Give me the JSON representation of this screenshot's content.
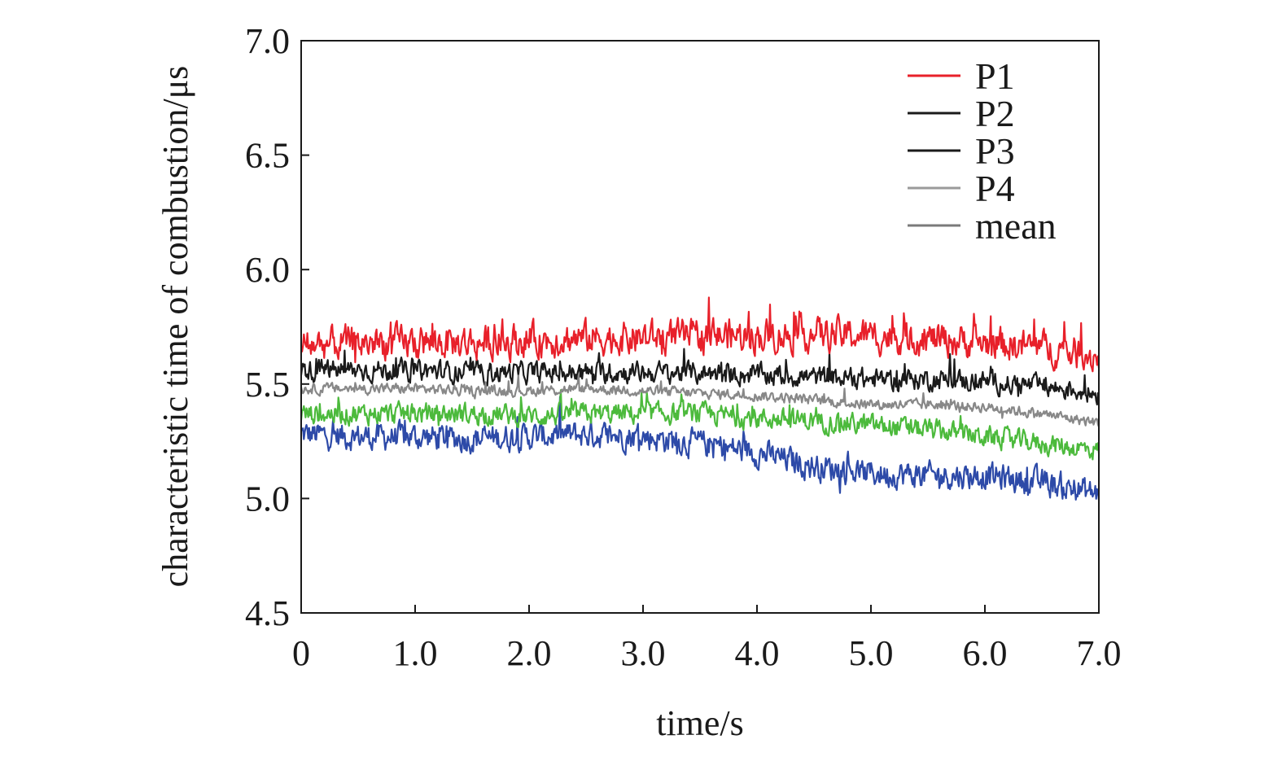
{
  "chart_data": {
    "type": "line",
    "title": "",
    "xlabel": "time/s",
    "ylabel": "characteristic time of combustion/μs",
    "xlim": [
      0,
      7.0
    ],
    "ylim": [
      4.5,
      7.0
    ],
    "x_ticks": [
      "0",
      "1.0",
      "2.0",
      "3.0",
      "4.0",
      "5.0",
      "6.0",
      "7.0"
    ],
    "y_ticks": [
      "4.5",
      "5.0",
      "5.5",
      "6.0",
      "6.5",
      "7.0"
    ],
    "grid": false,
    "legend_position": "top-right",
    "x": [
      0,
      0.5,
      1.0,
      1.5,
      2.0,
      2.5,
      3.0,
      3.5,
      4.0,
      4.5,
      5.0,
      5.5,
      6.0,
      6.5,
      7.0
    ],
    "series": [
      {
        "name": "P1",
        "color": "#e8202a",
        "legend_color": "#e8202a",
        "values": [
          5.67,
          5.68,
          5.68,
          5.68,
          5.69,
          5.7,
          5.7,
          5.71,
          5.71,
          5.72,
          5.71,
          5.7,
          5.68,
          5.66,
          5.62
        ]
      },
      {
        "name": "P2",
        "color": "#1a1a1a",
        "legend_color": "#1a1a1a",
        "values": [
          5.56,
          5.56,
          5.56,
          5.55,
          5.55,
          5.55,
          5.55,
          5.55,
          5.54,
          5.53,
          5.52,
          5.52,
          5.51,
          5.49,
          5.46
        ]
      },
      {
        "name": "P3",
        "color": "#2d4aa8",
        "legend_color": "#1a1a1a",
        "values": [
          5.28,
          5.27,
          5.27,
          5.26,
          5.27,
          5.28,
          5.27,
          5.24,
          5.2,
          5.14,
          5.11,
          5.1,
          5.1,
          5.07,
          5.02
        ]
      },
      {
        "name": "P4",
        "color": "#4cba3c",
        "legend_color": "#9a9a9a",
        "values": [
          5.37,
          5.37,
          5.37,
          5.37,
          5.36,
          5.37,
          5.37,
          5.37,
          5.35,
          5.34,
          5.32,
          5.3,
          5.27,
          5.24,
          5.21
        ]
      },
      {
        "name": "mean",
        "color": "#888888",
        "legend_color": "#7a7a7a",
        "values": [
          5.48,
          5.48,
          5.48,
          5.47,
          5.47,
          5.48,
          5.47,
          5.46,
          5.45,
          5.43,
          5.41,
          5.41,
          5.4,
          5.37,
          5.33
        ]
      }
    ]
  }
}
